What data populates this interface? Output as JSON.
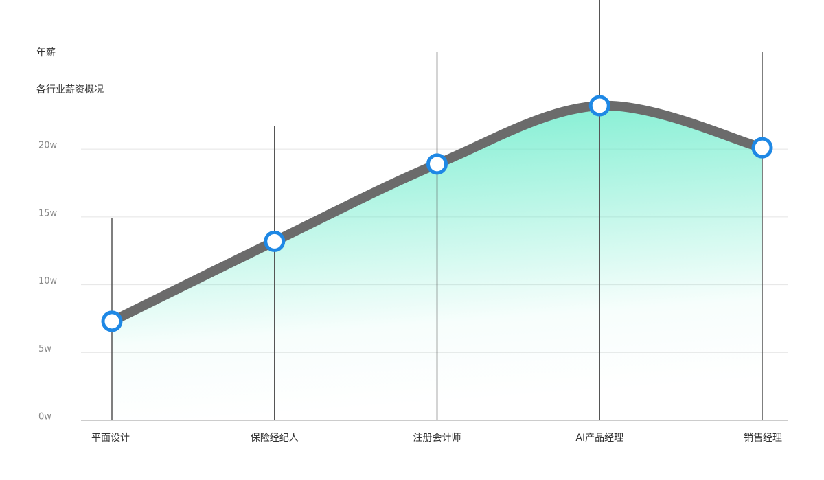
{
  "chart_data": {
    "type": "line",
    "title": "各行业薪资概况",
    "y_label": "年薪",
    "categories": [
      "平面设计",
      "保险经纪人",
      "注册会计师",
      "AI产品经理",
      "销售经理"
    ],
    "values": [
      7.3,
      13.2,
      18.9,
      23.2,
      20.1
    ],
    "color": "#6b6b6b",
    "marker_color": "#1e88e5",
    "area_color": "#5eeac6",
    "ylim": [
      0,
      31
    ],
    "yticks": [
      {
        "value": 0,
        "label": "0w"
      },
      {
        "value": 5,
        "label": "5w"
      },
      {
        "value": 10,
        "label": "10w"
      },
      {
        "value": 15,
        "label": "15w"
      },
      {
        "value": 20,
        "label": "20w"
      }
    ],
    "grid": true
  }
}
